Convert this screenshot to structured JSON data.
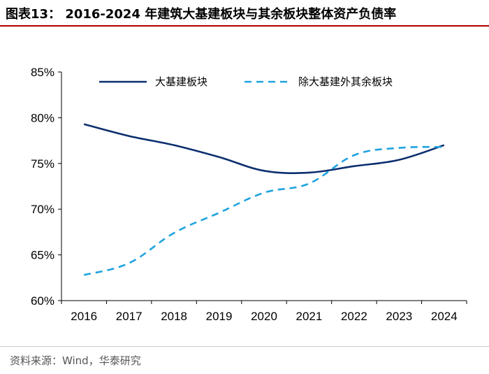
{
  "header": {
    "title": "图表13：  2016-2024 年建筑大基建板块与其余板块整体资产负债率"
  },
  "footer": {
    "source": "资料来源：Wind，华泰研究"
  },
  "chart_data": {
    "type": "line",
    "title": "2016-2024 年建筑大基建板块与其余板块整体资产负债率",
    "xlabel": "",
    "ylabel": "",
    "categories": [
      "2016",
      "2017",
      "2018",
      "2019",
      "2020",
      "2021",
      "2022",
      "2023",
      "2024"
    ],
    "ylim": [
      60,
      85
    ],
    "yticks": [
      60,
      65,
      70,
      75,
      80,
      85
    ],
    "ytick_labels": [
      "60%",
      "65%",
      "70%",
      "75%",
      "80%",
      "85%"
    ],
    "grid": false,
    "legend_position": "top",
    "series": [
      {
        "name": "大基建板块",
        "style": "solid",
        "color": "#0b2e6f",
        "values": [
          79.3,
          78.0,
          77.0,
          75.7,
          74.2,
          74.0,
          74.7,
          75.4,
          77.0
        ]
      },
      {
        "name": "除大基建外其余板块",
        "style": "dashed",
        "color": "#1ea3e0",
        "values": [
          62.8,
          64.1,
          67.4,
          69.6,
          71.8,
          72.8,
          75.9,
          76.7,
          76.8
        ]
      }
    ]
  }
}
